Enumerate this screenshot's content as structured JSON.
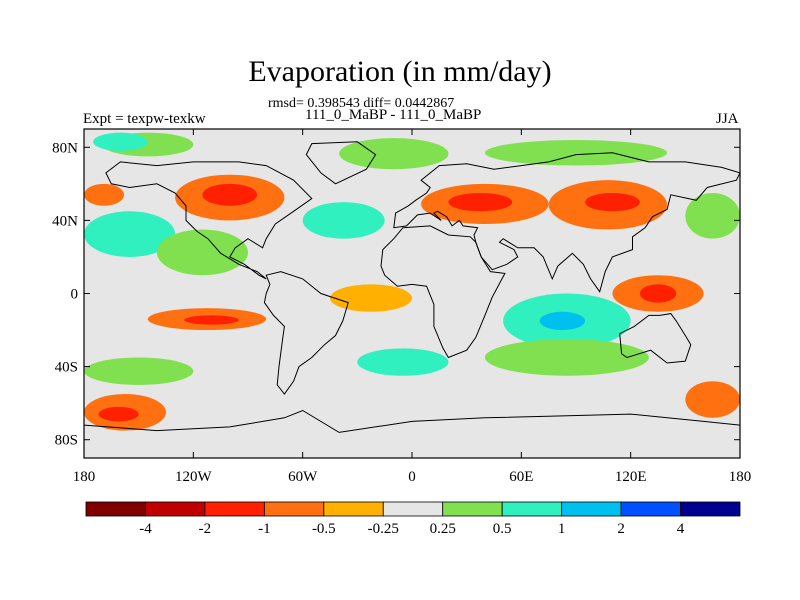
{
  "title": "Evaporation (in mm/day)",
  "stats": "rmsd= 0.398543 diff= 0.0442867",
  "subtitle": "111_0_MaBP - 111_0_MaBP",
  "left_label": "Expt = texpw-texkw",
  "right_label": "JJA",
  "map": {
    "projection": "cylindrical equidistant",
    "lon_range": [
      -180,
      180
    ],
    "lat_range": [
      -90,
      90
    ],
    "lat_ticks": [
      {
        "value": 80,
        "label": "80N"
      },
      {
        "value": 40,
        "label": "40N"
      },
      {
        "value": 0,
        "label": "0"
      },
      {
        "value": -40,
        "label": "40S"
      },
      {
        "value": -80,
        "label": "80S"
      }
    ],
    "lon_ticks": [
      {
        "value": -180,
        "label": "180"
      },
      {
        "value": -120,
        "label": "120W"
      },
      {
        "value": -60,
        "label": "60W"
      },
      {
        "value": 0,
        "label": "0"
      },
      {
        "value": 60,
        "label": "60E"
      },
      {
        "value": 120,
        "label": "120E"
      },
      {
        "value": 180,
        "label": "180"
      }
    ],
    "background_color": "#e6e6e6",
    "coastline_color": "#000000"
  },
  "colorbar": {
    "colors": [
      "#800000",
      "#c00000",
      "#ff2000",
      "#ff7010",
      "#ffb000",
      "#e6e6e6",
      "#80e050",
      "#30f0c0",
      "#00c0f0",
      "#0050ff",
      "#000090"
    ],
    "boundary_labels": [
      "-4",
      "-2",
      "-1",
      "-0.5",
      "-0.25",
      "0.25",
      "0.5",
      "1",
      "2",
      "4"
    ]
  },
  "regions": [
    {
      "name": "arctic-green-west",
      "color": "#80e050",
      "lon": [
        -170,
        -120
      ],
      "lat": [
        75,
        88
      ]
    },
    {
      "name": "arctic-cyan-west",
      "color": "#30f0c0",
      "lon": [
        -175,
        -145
      ],
      "lat": [
        78,
        88
      ]
    },
    {
      "name": "arctic-green-east",
      "color": "#80e050",
      "lon": [
        -40,
        20
      ],
      "lat": [
        68,
        85
      ]
    },
    {
      "name": "arctic-green-far-east",
      "color": "#80e050",
      "lon": [
        40,
        140
      ],
      "lat": [
        70,
        84
      ]
    },
    {
      "name": "north-pacific-orange",
      "color": "#ff7010",
      "lon": [
        -180,
        -158
      ],
      "lat": [
        48,
        60
      ]
    },
    {
      "name": "north-america-orange",
      "color": "#ff7010",
      "lon": [
        -130,
        -70
      ],
      "lat": [
        40,
        65
      ]
    },
    {
      "name": "north-america-red",
      "color": "#ff2000",
      "lon": [
        -115,
        -85
      ],
      "lat": [
        48,
        60
      ]
    },
    {
      "name": "europe-orange",
      "color": "#ff7010",
      "lon": [
        5,
        75
      ],
      "lat": [
        38,
        60
      ]
    },
    {
      "name": "europe-red",
      "color": "#ff2000",
      "lon": [
        20,
        55
      ],
      "lat": [
        45,
        55
      ]
    },
    {
      "name": "asia-orange",
      "color": "#ff7010",
      "lon": [
        75,
        140
      ],
      "lat": [
        35,
        62
      ]
    },
    {
      "name": "asia-red",
      "color": "#ff2000",
      "lon": [
        95,
        125
      ],
      "lat": [
        45,
        55
      ]
    },
    {
      "name": "north-pacific-cyan",
      "color": "#30f0c0",
      "lon": [
        -180,
        -130
      ],
      "lat": [
        20,
        45
      ]
    },
    {
      "name": "north-pacific-green",
      "color": "#80e050",
      "lon": [
        -140,
        -90
      ],
      "lat": [
        10,
        35
      ]
    },
    {
      "name": "north-atlantic-cyan",
      "color": "#30f0c0",
      "lon": [
        -60,
        -15
      ],
      "lat": [
        30,
        50
      ]
    },
    {
      "name": "east-pacific-green",
      "color": "#80e050",
      "lon": [
        150,
        180
      ],
      "lat": [
        30,
        55
      ]
    },
    {
      "name": "indian-ocean-cyan",
      "color": "#30f0c0",
      "lon": [
        50,
        120
      ],
      "lat": [
        -30,
        0
      ]
    },
    {
      "name": "indian-ocean-blue",
      "color": "#00c0f0",
      "lon": [
        70,
        95
      ],
      "lat": [
        -20,
        -10
      ]
    },
    {
      "name": "indian-ocean-green",
      "color": "#80e050",
      "lon": [
        40,
        130
      ],
      "lat": [
        -45,
        -25
      ]
    },
    {
      "name": "west-pacific-orange",
      "color": "#ff7010",
      "lon": [
        110,
        160
      ],
      "lat": [
        -10,
        10
      ]
    },
    {
      "name": "west-pacific-red",
      "color": "#ff2000",
      "lon": [
        125,
        145
      ],
      "lat": [
        -5,
        5
      ]
    },
    {
      "name": "south-pacific-orange",
      "color": "#ff7010",
      "lon": [
        -145,
        -80
      ],
      "lat": [
        -20,
        -8
      ]
    },
    {
      "name": "south-pacific-red",
      "color": "#ff2000",
      "lon": [
        -125,
        -95
      ],
      "lat": [
        -17,
        -12
      ]
    },
    {
      "name": "south-pacific-green",
      "color": "#80e050",
      "lon": [
        -180,
        -120
      ],
      "lat": [
        -50,
        -35
      ]
    },
    {
      "name": "southern-ocean-orange",
      "color": "#ff7010",
      "lon": [
        -180,
        -135
      ],
      "lat": [
        -75,
        -55
      ]
    },
    {
      "name": "southern-ocean-red",
      "color": "#ff2000",
      "lon": [
        -172,
        -150
      ],
      "lat": [
        -70,
        -62
      ]
    },
    {
      "name": "southern-ocean-orange-east",
      "color": "#ff7010",
      "lon": [
        150,
        180
      ],
      "lat": [
        -68,
        -48
      ]
    },
    {
      "name": "atlantic-orange",
      "color": "#ffb000",
      "lon": [
        -45,
        0
      ],
      "lat": [
        -10,
        5
      ]
    },
    {
      "name": "atlantic-cyan",
      "color": "#30f0c0",
      "lon": [
        -30,
        20
      ],
      "lat": [
        -45,
        -30
      ]
    }
  ]
}
